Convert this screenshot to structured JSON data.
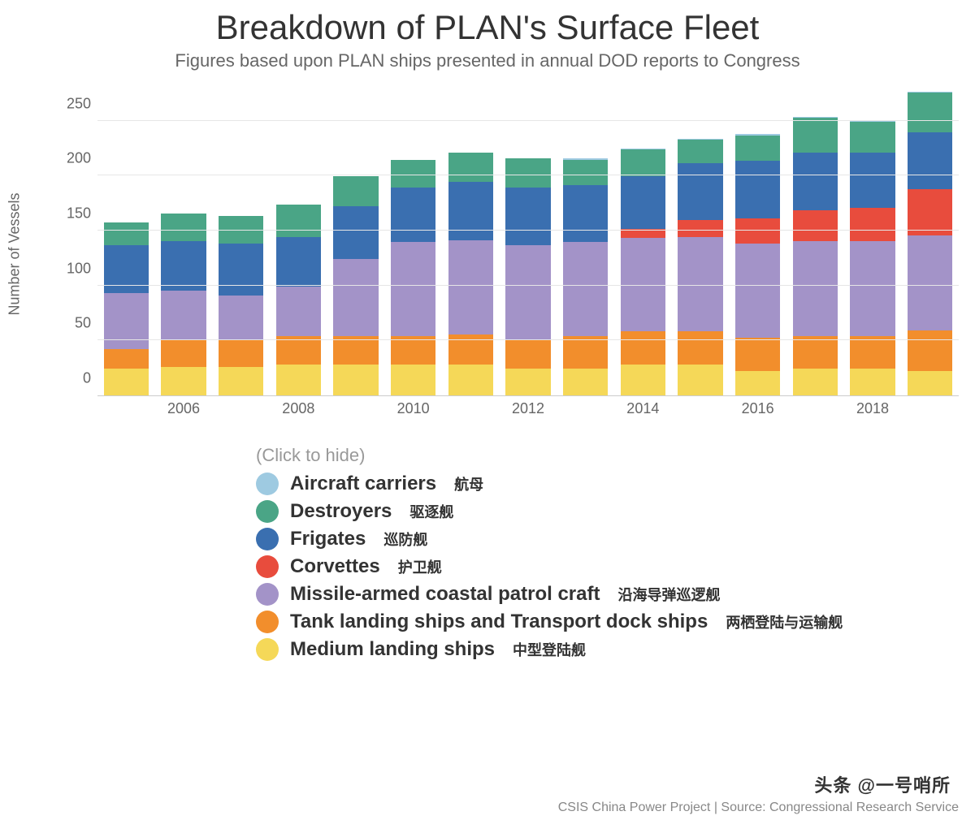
{
  "title": "Breakdown of PLAN's Surface Fleet",
  "subtitle": "Figures based upon PLAN ships presented in annual DOD reports to Congress",
  "y_axis_label": "Number of Vessels",
  "legend_hint": "(Click to hide)",
  "credit": "CSIS China Power Project | Source: Congressional Research Service",
  "watermark": "头条 @一号哨所",
  "chart": {
    "type": "stacked-bar",
    "background_color": "#ffffff",
    "grid_color": "#e6e6e6",
    "axis_text_color": "#666666",
    "tick_fontsize": 18,
    "title_fontsize": 42,
    "subtitle_fontsize": 22,
    "ylim": [
      0,
      280
    ],
    "y_ticks": [
      0,
      50,
      100,
      150,
      200,
      250
    ],
    "years": [
      2005,
      2006,
      2007,
      2008,
      2009,
      2010,
      2011,
      2012,
      2013,
      2014,
      2015,
      2016,
      2017,
      2018,
      2019
    ],
    "x_tick_years": [
      2006,
      2008,
      2010,
      2012,
      2014,
      2016,
      2018
    ],
    "bar_width_ratio": 0.78,
    "series": [
      {
        "key": "medium_landing_ships",
        "label_en": "Medium landing ships",
        "label_zh": "中型登陆舰",
        "color": "#f5d858",
        "values": [
          24,
          26,
          26,
          28,
          28,
          28,
          28,
          24,
          24,
          28,
          28,
          22,
          24,
          24,
          22
        ]
      },
      {
        "key": "tank_transport",
        "label_en": "Tank landing ships and Transport dock ships",
        "label_zh": "两栖登陆与运输舰",
        "color": "#f28e2c",
        "values": [
          18,
          24,
          24,
          26,
          26,
          26,
          27,
          26,
          30,
          30,
          30,
          30,
          30,
          30,
          37
        ]
      },
      {
        "key": "patrol_craft",
        "label_en": "Missile-armed coastal patrol craft",
        "label_zh": "沿海导弹巡逻舰",
        "color": "#a393c8",
        "values": [
          51,
          45,
          41,
          45,
          70,
          85,
          86,
          86,
          85,
          85,
          86,
          86,
          86,
          86,
          86
        ]
      },
      {
        "key": "corvettes",
        "label_en": "Corvettes",
        "label_zh": "护卫舰",
        "color": "#e84c3d",
        "values": [
          0,
          0,
          0,
          0,
          0,
          0,
          0,
          0,
          0,
          8,
          15,
          23,
          28,
          30,
          42
        ]
      },
      {
        "key": "frigates",
        "label_en": "Frigates",
        "label_zh": "巡防舰",
        "color": "#3a6fb0",
        "values": [
          43,
          45,
          47,
          45,
          48,
          50,
          53,
          53,
          52,
          48,
          52,
          52,
          52,
          50,
          52
        ]
      },
      {
        "key": "destroyers",
        "label_en": "Destroyers",
        "label_zh": "驱逐舰",
        "color": "#4aa586",
        "values": [
          21,
          25,
          25,
          29,
          27,
          25,
          26,
          26,
          23,
          24,
          21,
          23,
          32,
          28,
          36
        ]
      },
      {
        "key": "carriers",
        "label_en": "Aircraft carriers",
        "label_zh": "航母",
        "color": "#9ecae1",
        "values": [
          0,
          0,
          0,
          0,
          0,
          0,
          0,
          0,
          1,
          1,
          1,
          1,
          1,
          1,
          1
        ]
      }
    ],
    "legend_order": [
      "carriers",
      "destroyers",
      "frigates",
      "corvettes",
      "patrol_craft",
      "tank_transport",
      "medium_landing_ships"
    ]
  }
}
